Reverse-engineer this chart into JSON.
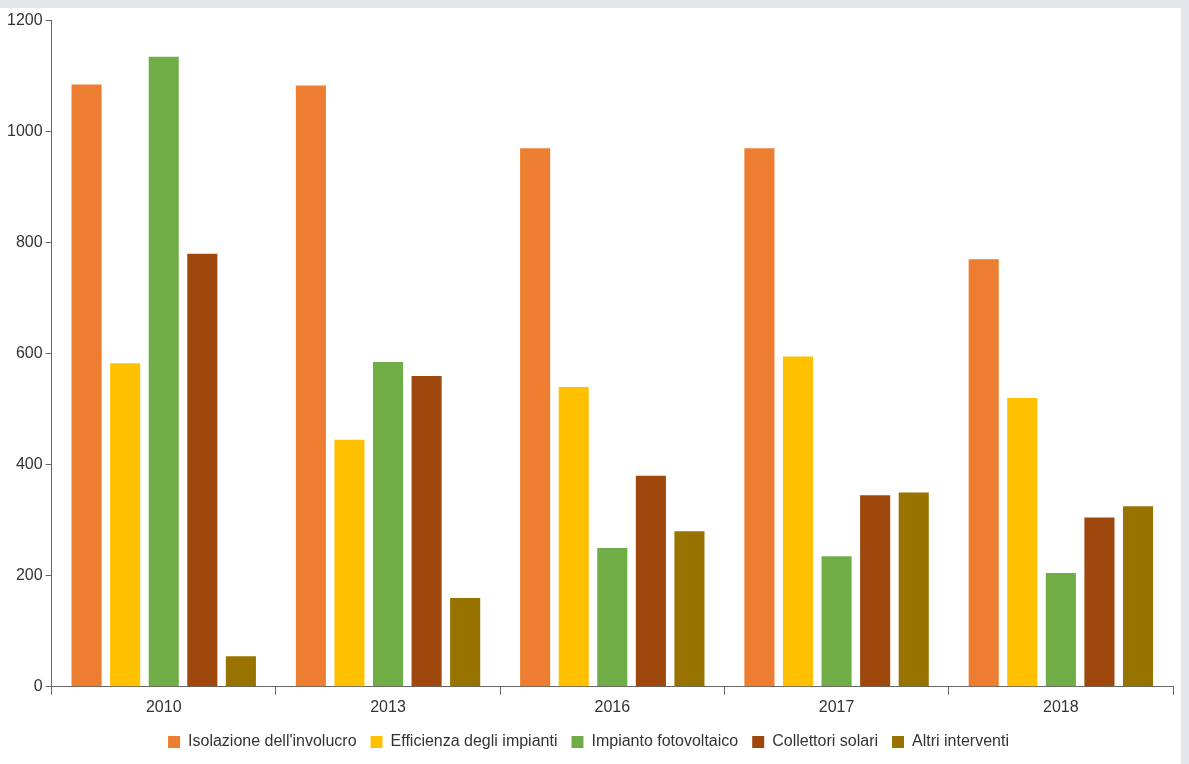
{
  "chart_data": {
    "type": "bar",
    "categories": [
      "2010",
      "2013",
      "2016",
      "2017",
      "2018"
    ],
    "series": [
      {
        "name": "Isolazione dell'involucro",
        "color": "#ed7d31",
        "values": [
          1085,
          1083,
          970,
          970,
          770
        ]
      },
      {
        "name": "Efficienza degli impianti",
        "color": "#ffc000",
        "values": [
          583,
          445,
          540,
          595,
          520
        ]
      },
      {
        "name": "Impianto fotovoltaico",
        "color": "#70ad47",
        "values": [
          1135,
          585,
          250,
          235,
          205
        ]
      },
      {
        "name": "Collettori solari",
        "color": "#9e480e",
        "values": [
          780,
          560,
          380,
          345,
          305
        ]
      },
      {
        "name": "Altri interventi",
        "color": "#997300",
        "values": [
          55,
          160,
          280,
          350,
          325
        ]
      }
    ],
    "ylim": [
      0,
      1200
    ],
    "yticks": [
      0,
      200,
      400,
      600,
      800,
      1000,
      1200
    ],
    "grid": false,
    "legend": "bottom"
  }
}
